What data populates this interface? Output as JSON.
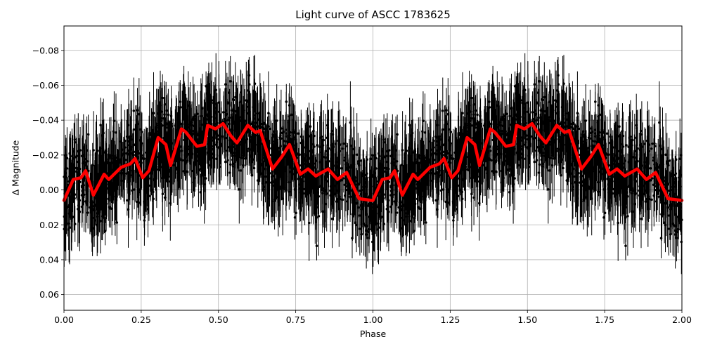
{
  "chart_data": {
    "type": "scatter",
    "title": "Light curve of ASCC 1783625",
    "xlabel": "Phase",
    "ylabel": "Δ Magnitude",
    "xlim": [
      0.0,
      2.0
    ],
    "ylim": [
      0.069,
      -0.094
    ],
    "y_inverted": true,
    "grid": true,
    "xticks": [
      0.0,
      0.25,
      0.5,
      0.75,
      1.0,
      1.25,
      1.5,
      1.75,
      2.0
    ],
    "xtick_labels": [
      "0.00",
      "0.25",
      "0.50",
      "0.75",
      "1.00",
      "1.25",
      "1.50",
      "1.75",
      "2.00"
    ],
    "yticks": [
      -0.08,
      -0.06,
      -0.04,
      -0.02,
      0.0,
      0.02,
      0.04,
      0.06
    ],
    "ytick_labels": [
      "−0.08",
      "−0.06",
      "−0.04",
      "−0.02",
      "0.00",
      "0.02",
      "0.04",
      "0.06"
    ],
    "series": [
      {
        "name": "observations",
        "kind": "errorbar-scatter",
        "color": "#000000",
        "description": "Dense phase-folded photometry (black points with error bars), scatter roughly ±0.04 mag about the trend, plotted twice over phases 0–2"
      },
      {
        "name": "binned trend",
        "kind": "line",
        "color": "#ff0000",
        "x": [
          0.0,
          0.03,
          0.055,
          0.07,
          0.095,
          0.13,
          0.145,
          0.185,
          0.215,
          0.23,
          0.255,
          0.275,
          0.305,
          0.33,
          0.345,
          0.38,
          0.395,
          0.43,
          0.455,
          0.465,
          0.49,
          0.515,
          0.54,
          0.56,
          0.595,
          0.62,
          0.635,
          0.675,
          0.705,
          0.73,
          0.765,
          0.79,
          0.815,
          0.855,
          0.885,
          0.915,
          0.955,
          0.995,
          1.0,
          1.03,
          1.055,
          1.07,
          1.095,
          1.13,
          1.145,
          1.185,
          1.215,
          1.23,
          1.255,
          1.275,
          1.305,
          1.33,
          1.345,
          1.38,
          1.395,
          1.43,
          1.455,
          1.465,
          1.49,
          1.515,
          1.54,
          1.56,
          1.595,
          1.62,
          1.635,
          1.675,
          1.705,
          1.73,
          1.765,
          1.79,
          1.815,
          1.855,
          1.885,
          1.915,
          1.955,
          2.0
        ],
        "y": [
          0.006,
          -0.006,
          -0.007,
          -0.011,
          0.003,
          -0.009,
          -0.006,
          -0.013,
          -0.015,
          -0.018,
          -0.007,
          -0.011,
          -0.03,
          -0.026,
          -0.014,
          -0.035,
          -0.033,
          -0.025,
          -0.026,
          -0.037,
          -0.035,
          -0.038,
          -0.031,
          -0.027,
          -0.037,
          -0.033,
          -0.034,
          -0.012,
          -0.019,
          -0.026,
          -0.009,
          -0.012,
          -0.008,
          -0.012,
          -0.006,
          -0.01,
          0.005,
          0.006,
          0.006,
          -0.006,
          -0.007,
          -0.011,
          0.003,
          -0.009,
          -0.006,
          -0.013,
          -0.015,
          -0.018,
          -0.007,
          -0.011,
          -0.03,
          -0.026,
          -0.014,
          -0.035,
          -0.033,
          -0.025,
          -0.026,
          -0.037,
          -0.035,
          -0.038,
          -0.031,
          -0.027,
          -0.037,
          -0.033,
          -0.034,
          -0.012,
          -0.019,
          -0.026,
          -0.009,
          -0.012,
          -0.008,
          -0.012,
          -0.006,
          -0.01,
          0.005,
          0.006
        ]
      }
    ]
  }
}
